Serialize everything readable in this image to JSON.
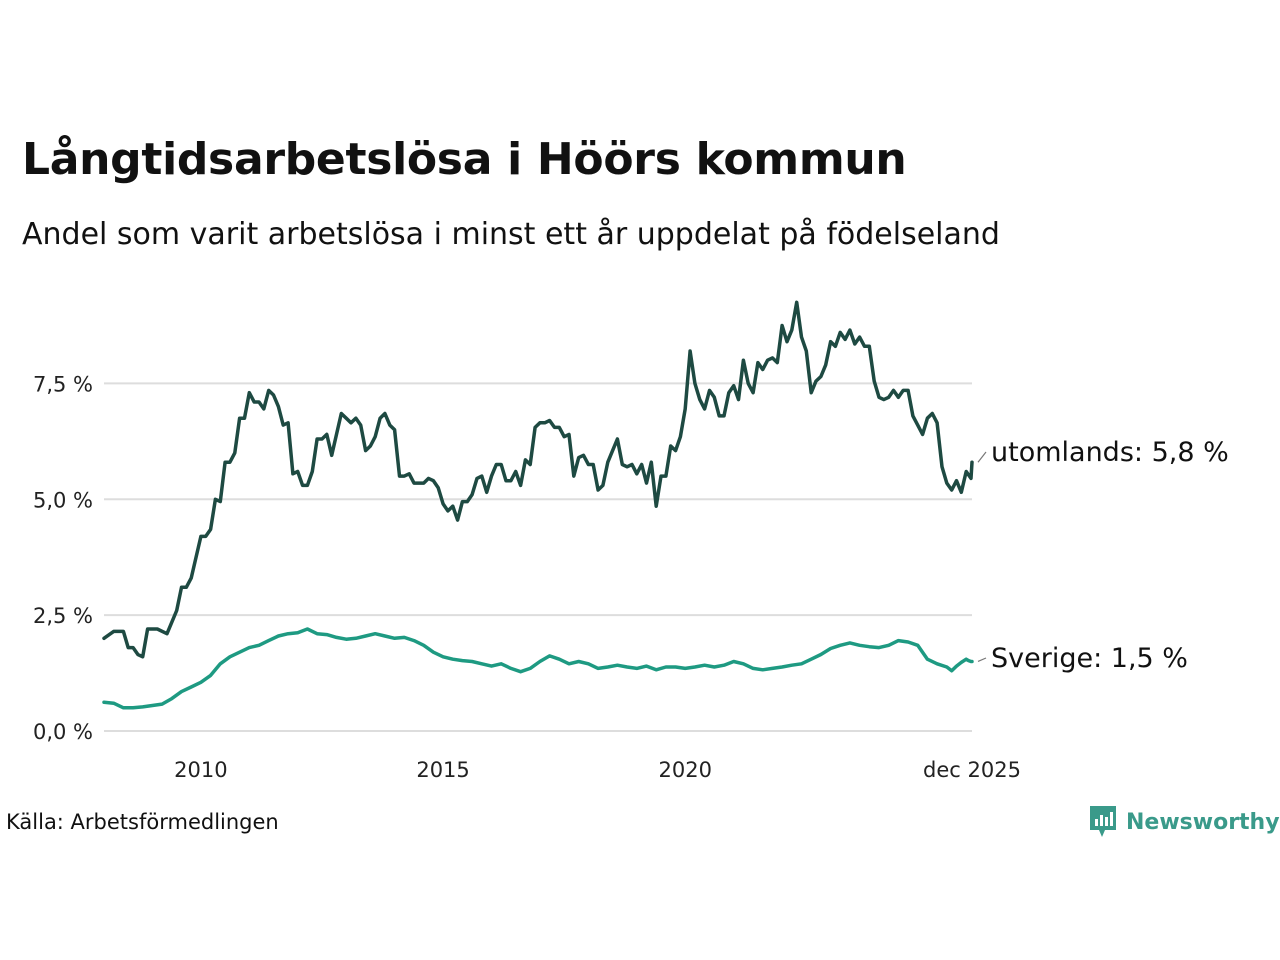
{
  "header": {
    "title": "Långtidsarbetslösa i Höörs kommun",
    "subtitle": "Andel som varit arbetslösa i minst ett år uppdelat på födelseland"
  },
  "footer": {
    "source": "Källa: Arbetsförmedlingen",
    "brand": "Newsworthy"
  },
  "colors": {
    "utomlands": "#1e4a42",
    "sverige": "#1e9a82",
    "grid": "#dddddd",
    "brand": "#3a9a8a"
  },
  "chart_data": {
    "type": "line",
    "title": "Långtidsarbetslösa i Höörs kommun",
    "subtitle": "Andel som varit arbetslösa i minst ett år uppdelat på födelseland",
    "xlabel": "",
    "ylabel": "",
    "xlim": [
      2008.0,
      2025.92
    ],
    "ylim": [
      0,
      9.3
    ],
    "y_ticks": [
      0,
      2.5,
      5.0,
      7.5
    ],
    "y_tick_labels": [
      "0,0 %",
      "2,5 %",
      "5,0 %",
      "7,5 %"
    ],
    "x_ticks": [
      2010,
      2015,
      2020,
      2025.92
    ],
    "x_tick_labels": [
      "2010",
      "2015",
      "2020",
      "dec 2025"
    ],
    "grid": true,
    "series": [
      {
        "name": "utomlands",
        "label": "utomlands: 5,8 %",
        "points": [
          [
            2008.0,
            2.0
          ],
          [
            2008.2,
            2.15
          ],
          [
            2008.4,
            2.15
          ],
          [
            2008.5,
            1.8
          ],
          [
            2008.6,
            1.8
          ],
          [
            2008.7,
            1.65
          ],
          [
            2008.8,
            1.6
          ],
          [
            2008.9,
            2.2
          ],
          [
            2009.1,
            2.2
          ],
          [
            2009.3,
            2.1
          ],
          [
            2009.5,
            2.6
          ],
          [
            2009.6,
            3.1
          ],
          [
            2009.7,
            3.1
          ],
          [
            2009.8,
            3.3
          ],
          [
            2010.0,
            4.2
          ],
          [
            2010.1,
            4.2
          ],
          [
            2010.2,
            4.35
          ],
          [
            2010.3,
            5.0
          ],
          [
            2010.4,
            4.95
          ],
          [
            2010.5,
            5.8
          ],
          [
            2010.6,
            5.8
          ],
          [
            2010.7,
            6.0
          ],
          [
            2010.8,
            6.75
          ],
          [
            2010.9,
            6.75
          ],
          [
            2011.0,
            7.3
          ],
          [
            2011.1,
            7.1
          ],
          [
            2011.2,
            7.1
          ],
          [
            2011.3,
            6.95
          ],
          [
            2011.4,
            7.35
          ],
          [
            2011.5,
            7.25
          ],
          [
            2011.6,
            7.0
          ],
          [
            2011.7,
            6.6
          ],
          [
            2011.8,
            6.65
          ],
          [
            2011.9,
            5.55
          ],
          [
            2012.0,
            5.6
          ],
          [
            2012.1,
            5.3
          ],
          [
            2012.2,
            5.3
          ],
          [
            2012.3,
            5.6
          ],
          [
            2012.4,
            6.3
          ],
          [
            2012.5,
            6.3
          ],
          [
            2012.6,
            6.4
          ],
          [
            2012.7,
            5.95
          ],
          [
            2012.8,
            6.4
          ],
          [
            2012.9,
            6.85
          ],
          [
            2013.0,
            6.75
          ],
          [
            2013.1,
            6.65
          ],
          [
            2013.2,
            6.75
          ],
          [
            2013.3,
            6.6
          ],
          [
            2013.4,
            6.05
          ],
          [
            2013.5,
            6.15
          ],
          [
            2013.6,
            6.35
          ],
          [
            2013.7,
            6.75
          ],
          [
            2013.8,
            6.85
          ],
          [
            2013.9,
            6.6
          ],
          [
            2014.0,
            6.5
          ],
          [
            2014.1,
            5.5
          ],
          [
            2014.2,
            5.5
          ],
          [
            2014.3,
            5.55
          ],
          [
            2014.4,
            5.35
          ],
          [
            2014.5,
            5.35
          ],
          [
            2014.6,
            5.35
          ],
          [
            2014.7,
            5.45
          ],
          [
            2014.8,
            5.4
          ],
          [
            2014.9,
            5.25
          ],
          [
            2015.0,
            4.9
          ],
          [
            2015.1,
            4.75
          ],
          [
            2015.2,
            4.85
          ],
          [
            2015.3,
            4.55
          ],
          [
            2015.4,
            4.95
          ],
          [
            2015.5,
            4.95
          ],
          [
            2015.6,
            5.1
          ],
          [
            2015.7,
            5.45
          ],
          [
            2015.8,
            5.5
          ],
          [
            2015.9,
            5.15
          ],
          [
            2016.0,
            5.5
          ],
          [
            2016.1,
            5.75
          ],
          [
            2016.2,
            5.75
          ],
          [
            2016.3,
            5.4
          ],
          [
            2016.4,
            5.4
          ],
          [
            2016.5,
            5.6
          ],
          [
            2016.6,
            5.3
          ],
          [
            2016.7,
            5.85
          ],
          [
            2016.8,
            5.75
          ],
          [
            2016.9,
            6.55
          ],
          [
            2017.0,
            6.65
          ],
          [
            2017.1,
            6.65
          ],
          [
            2017.2,
            6.7
          ],
          [
            2017.3,
            6.55
          ],
          [
            2017.4,
            6.55
          ],
          [
            2017.5,
            6.35
          ],
          [
            2017.6,
            6.4
          ],
          [
            2017.7,
            5.5
          ],
          [
            2017.8,
            5.9
          ],
          [
            2017.9,
            5.95
          ],
          [
            2018.0,
            5.75
          ],
          [
            2018.1,
            5.75
          ],
          [
            2018.2,
            5.2
          ],
          [
            2018.3,
            5.3
          ],
          [
            2018.4,
            5.8
          ],
          [
            2018.5,
            6.05
          ],
          [
            2018.6,
            6.3
          ],
          [
            2018.7,
            5.75
          ],
          [
            2018.8,
            5.7
          ],
          [
            2018.9,
            5.75
          ],
          [
            2019.0,
            5.55
          ],
          [
            2019.1,
            5.75
          ],
          [
            2019.2,
            5.35
          ],
          [
            2019.3,
            5.8
          ],
          [
            2019.4,
            4.85
          ],
          [
            2019.5,
            5.5
          ],
          [
            2019.6,
            5.5
          ],
          [
            2019.7,
            6.15
          ],
          [
            2019.8,
            6.05
          ],
          [
            2019.9,
            6.35
          ],
          [
            2020.0,
            6.95
          ],
          [
            2020.1,
            8.2
          ],
          [
            2020.2,
            7.5
          ],
          [
            2020.3,
            7.15
          ],
          [
            2020.4,
            6.95
          ],
          [
            2020.5,
            7.35
          ],
          [
            2020.6,
            7.2
          ],
          [
            2020.7,
            6.8
          ],
          [
            2020.8,
            6.8
          ],
          [
            2020.9,
            7.3
          ],
          [
            2021.0,
            7.45
          ],
          [
            2021.1,
            7.15
          ],
          [
            2021.2,
            8.0
          ],
          [
            2021.3,
            7.5
          ],
          [
            2021.4,
            7.3
          ],
          [
            2021.5,
            7.95
          ],
          [
            2021.6,
            7.8
          ],
          [
            2021.7,
            8.0
          ],
          [
            2021.8,
            8.05
          ],
          [
            2021.9,
            7.95
          ],
          [
            2022.0,
            8.75
          ],
          [
            2022.1,
            8.4
          ],
          [
            2022.2,
            8.65
          ],
          [
            2022.3,
            9.25
          ],
          [
            2022.4,
            8.5
          ],
          [
            2022.5,
            8.2
          ],
          [
            2022.6,
            7.3
          ],
          [
            2022.7,
            7.55
          ],
          [
            2022.8,
            7.65
          ],
          [
            2022.9,
            7.9
          ],
          [
            2023.0,
            8.4
          ],
          [
            2023.1,
            8.3
          ],
          [
            2023.2,
            8.6
          ],
          [
            2023.3,
            8.45
          ],
          [
            2023.4,
            8.65
          ],
          [
            2023.5,
            8.35
          ],
          [
            2023.6,
            8.5
          ],
          [
            2023.7,
            8.3
          ],
          [
            2023.8,
            8.3
          ],
          [
            2023.9,
            7.55
          ],
          [
            2024.0,
            7.2
          ],
          [
            2024.1,
            7.15
          ],
          [
            2024.2,
            7.2
          ],
          [
            2024.3,
            7.35
          ],
          [
            2024.4,
            7.2
          ],
          [
            2024.5,
            7.35
          ],
          [
            2024.6,
            7.35
          ],
          [
            2024.7,
            6.8
          ],
          [
            2024.8,
            6.6
          ],
          [
            2024.9,
            6.4
          ],
          [
            2025.0,
            6.75
          ],
          [
            2025.1,
            6.85
          ],
          [
            2025.2,
            6.65
          ],
          [
            2025.3,
            5.7
          ],
          [
            2025.4,
            5.35
          ],
          [
            2025.5,
            5.2
          ],
          [
            2025.6,
            5.4
          ],
          [
            2025.7,
            5.15
          ],
          [
            2025.8,
            5.6
          ],
          [
            2025.9,
            5.45
          ],
          [
            2025.92,
            5.8
          ]
        ]
      },
      {
        "name": "Sverige",
        "label": "Sverige: 1,5 %",
        "points": [
          [
            2008.0,
            0.62
          ],
          [
            2008.2,
            0.6
          ],
          [
            2008.4,
            0.5
          ],
          [
            2008.6,
            0.5
          ],
          [
            2008.8,
            0.52
          ],
          [
            2009.0,
            0.55
          ],
          [
            2009.2,
            0.58
          ],
          [
            2009.4,
            0.7
          ],
          [
            2009.6,
            0.85
          ],
          [
            2009.8,
            0.95
          ],
          [
            2010.0,
            1.05
          ],
          [
            2010.2,
            1.2
          ],
          [
            2010.4,
            1.45
          ],
          [
            2010.6,
            1.6
          ],
          [
            2010.8,
            1.7
          ],
          [
            2011.0,
            1.8
          ],
          [
            2011.2,
            1.85
          ],
          [
            2011.4,
            1.95
          ],
          [
            2011.6,
            2.05
          ],
          [
            2011.8,
            2.1
          ],
          [
            2012.0,
            2.12
          ],
          [
            2012.2,
            2.2
          ],
          [
            2012.4,
            2.1
          ],
          [
            2012.6,
            2.08
          ],
          [
            2012.8,
            2.02
          ],
          [
            2013.0,
            1.98
          ],
          [
            2013.2,
            2.0
          ],
          [
            2013.4,
            2.05
          ],
          [
            2013.6,
            2.1
          ],
          [
            2013.8,
            2.05
          ],
          [
            2014.0,
            2.0
          ],
          [
            2014.2,
            2.02
          ],
          [
            2014.4,
            1.95
          ],
          [
            2014.6,
            1.85
          ],
          [
            2014.8,
            1.7
          ],
          [
            2015.0,
            1.6
          ],
          [
            2015.2,
            1.55
          ],
          [
            2015.4,
            1.52
          ],
          [
            2015.6,
            1.5
          ],
          [
            2015.8,
            1.45
          ],
          [
            2016.0,
            1.4
          ],
          [
            2016.2,
            1.45
          ],
          [
            2016.4,
            1.35
          ],
          [
            2016.6,
            1.28
          ],
          [
            2016.8,
            1.35
          ],
          [
            2017.0,
            1.5
          ],
          [
            2017.2,
            1.62
          ],
          [
            2017.4,
            1.55
          ],
          [
            2017.6,
            1.45
          ],
          [
            2017.8,
            1.5
          ],
          [
            2018.0,
            1.45
          ],
          [
            2018.2,
            1.35
          ],
          [
            2018.4,
            1.38
          ],
          [
            2018.6,
            1.42
          ],
          [
            2018.8,
            1.38
          ],
          [
            2019.0,
            1.35
          ],
          [
            2019.2,
            1.4
          ],
          [
            2019.4,
            1.32
          ],
          [
            2019.6,
            1.38
          ],
          [
            2019.8,
            1.38
          ],
          [
            2020.0,
            1.35
          ],
          [
            2020.2,
            1.38
          ],
          [
            2020.4,
            1.42
          ],
          [
            2020.6,
            1.38
          ],
          [
            2020.8,
            1.42
          ],
          [
            2021.0,
            1.5
          ],
          [
            2021.2,
            1.45
          ],
          [
            2021.4,
            1.35
          ],
          [
            2021.6,
            1.32
          ],
          [
            2021.8,
            1.35
          ],
          [
            2022.0,
            1.38
          ],
          [
            2022.2,
            1.42
          ],
          [
            2022.4,
            1.45
          ],
          [
            2022.6,
            1.55
          ],
          [
            2022.8,
            1.65
          ],
          [
            2023.0,
            1.78
          ],
          [
            2023.2,
            1.85
          ],
          [
            2023.4,
            1.9
          ],
          [
            2023.6,
            1.85
          ],
          [
            2023.8,
            1.82
          ],
          [
            2024.0,
            1.8
          ],
          [
            2024.2,
            1.85
          ],
          [
            2024.4,
            1.95
          ],
          [
            2024.6,
            1.92
          ],
          [
            2024.8,
            1.85
          ],
          [
            2025.0,
            1.55
          ],
          [
            2025.2,
            1.45
          ],
          [
            2025.4,
            1.38
          ],
          [
            2025.5,
            1.3
          ],
          [
            2025.6,
            1.4
          ],
          [
            2025.7,
            1.48
          ],
          [
            2025.8,
            1.55
          ],
          [
            2025.85,
            1.52
          ],
          [
            2025.9,
            1.5
          ],
          [
            2025.92,
            1.5
          ]
        ]
      }
    ]
  }
}
